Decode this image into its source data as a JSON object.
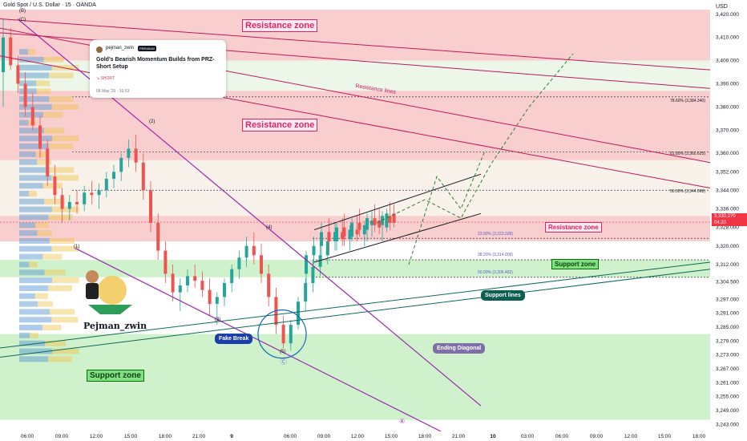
{
  "header": {
    "title": "Gold Spot / U.S. Dollar · 15 · OANDA",
    "currency": "USD"
  },
  "news": {
    "author": "pejman_zwin",
    "badge": "PREMIUM",
    "title": "Gold's Bearish Momentum Builds from PRZ-Short Setup",
    "direction": "↘ SHORT",
    "date": "08 May '25 · 16:53"
  },
  "author_watermark": "Pejman_zwin",
  "labels": {
    "resistance_zone_1": "Resistance zone",
    "resistance_zone_2": "Resistance zone",
    "resistance_zone_3": "Resistance zone",
    "resistance_lines": "Resistance lines",
    "support_zone_1": "Support zone",
    "support_zone_2": "Support zone",
    "support_lines": "Support lines",
    "fake_break": "Fake Break",
    "ending_diagonal": "Ending Diagonal"
  },
  "waves": {
    "B": "(B)",
    "C": "(C)",
    "w1": "(1)",
    "w2": "(2)",
    "w3": "(3)",
    "w4": "(4)",
    "w5": "(5)",
    "circC": "Ⓒ",
    "circ4": "④"
  },
  "fib": {
    "f786": "78.60% (3,384.340)",
    "f618": "61.80% (3,360.625)",
    "f500": "50.00% (3,344.068)",
    "f236": "23.60% (3,323.328)",
    "f382": "38.20% (3,314.009)",
    "f500b": "50.00% (3,306.482)"
  },
  "last_price": {
    "value": "3,330.270",
    "countdown": "04:20"
  },
  "colors": {
    "resistance_fill": "#f3a5a5",
    "support_fill": "#a8e6a0",
    "bull": "#26a69a",
    "bear": "#ef5350",
    "resistance_line": "#c2185b",
    "support_line": "#0b6b5b",
    "diagonal": "#9c27b0",
    "last_price": "#f23645"
  },
  "chart_data": {
    "type": "candlestick",
    "symbol": "XAUUSD",
    "timeframe": "15",
    "price_axis": {
      "min": 3240,
      "max": 3422,
      "ticks": [
        3420,
        3410,
        3400,
        3390,
        3380,
        3370,
        3360,
        3352,
        3344,
        3336,
        3328,
        3320,
        3312,
        3304.5,
        3297,
        3291,
        3285,
        3279,
        3273,
        3267,
        3261,
        3255,
        3249,
        3243
      ],
      "tick_labels": [
        "3,420.000",
        "3,410.000",
        "3,400.000",
        "3,390.000",
        "3,380.000",
        "3,370.000",
        "3,360.000",
        "3,352.000",
        "3,344.000",
        "3,336.000",
        "3,328.000",
        "3,320.000",
        "3,312.000",
        "3,304.500",
        "3,297.000",
        "3,291.000",
        "3,285.000",
        "3,279.000",
        "3,273.000",
        "3,267.000",
        "3,261.000",
        "3,255.000",
        "3,249.000",
        "3,243.000"
      ]
    },
    "time_axis": {
      "labels": [
        "06:00",
        "09:00",
        "12:00",
        "15:00",
        "18:00",
        "21:00",
        "9",
        "06:00",
        "09:00",
        "12:00",
        "15:00",
        "18:00",
        "21:00",
        "10",
        "03:00",
        "06:00",
        "09:00",
        "12:00",
        "15:00",
        "18:00"
      ],
      "bold": [
        "9",
        "10"
      ]
    },
    "zones": [
      {
        "name": "Resistance zone",
        "type": "resistance",
        "from": 3400,
        "to": 3422
      },
      {
        "name": "Resistance zone",
        "type": "resistance",
        "from": 3357,
        "to": 3387
      },
      {
        "name": "Resistance zone",
        "type": "resistance",
        "from": 3322,
        "to": 3333
      },
      {
        "name": "Support zone",
        "type": "support",
        "from": 3306.5,
        "to": 3314
      },
      {
        "name": "Support zone",
        "type": "support",
        "from": 3245,
        "to": 3282
      }
    ],
    "fibonacci": [
      {
        "level": "78.60%",
        "price": 3384.34
      },
      {
        "level": "61.80%",
        "price": 3360.625
      },
      {
        "level": "50.00%",
        "price": 3344.068
      },
      {
        "level": "23.60%",
        "price": 3323.328
      },
      {
        "level": "38.20%",
        "price": 3314.009
      },
      {
        "level": "50.00%",
        "price": 3306.482
      }
    ],
    "last_price": 3330.27,
    "candles_ohlc": [
      [
        3395,
        3418,
        3380,
        3410
      ],
      [
        3410,
        3414,
        3396,
        3398
      ],
      [
        3398,
        3402,
        3386,
        3390
      ],
      [
        3390,
        3395,
        3376,
        3380
      ],
      [
        3380,
        3386,
        3370,
        3372
      ],
      [
        3372,
        3376,
        3358,
        3362
      ],
      [
        3362,
        3366,
        3346,
        3350
      ],
      [
        3350,
        3355,
        3338,
        3342
      ],
      [
        3342,
        3345,
        3330,
        3336
      ],
      [
        3336,
        3342,
        3331,
        3339
      ],
      [
        3339,
        3344,
        3334,
        3338
      ],
      [
        3338,
        3346,
        3335,
        3343
      ],
      [
        3343,
        3348,
        3338,
        3342
      ],
      [
        3342,
        3347,
        3336,
        3344
      ],
      [
        3344,
        3352,
        3341,
        3349
      ],
      [
        3349,
        3355,
        3345,
        3352
      ],
      [
        3352,
        3360,
        3348,
        3358
      ],
      [
        3358,
        3366,
        3354,
        3362
      ],
      [
        3362,
        3368,
        3352,
        3356
      ],
      [
        3356,
        3360,
        3340,
        3344
      ],
      [
        3344,
        3348,
        3326,
        3330
      ],
      [
        3330,
        3334,
        3314,
        3318
      ],
      [
        3318,
        3322,
        3304,
        3308
      ],
      [
        3308,
        3312,
        3296,
        3300
      ],
      [
        3300,
        3306,
        3292,
        3303
      ],
      [
        3303,
        3310,
        3300,
        3307
      ],
      [
        3307,
        3312,
        3302,
        3305
      ],
      [
        3305,
        3309,
        3298,
        3301
      ],
      [
        3301,
        3306,
        3290,
        3295
      ],
      [
        3295,
        3300,
        3286,
        3298
      ],
      [
        3298,
        3306,
        3294,
        3304
      ],
      [
        3304,
        3312,
        3300,
        3310
      ],
      [
        3310,
        3318,
        3306,
        3315
      ],
      [
        3315,
        3324,
        3311,
        3320
      ],
      [
        3320,
        3326,
        3312,
        3316
      ],
      [
        3316,
        3321,
        3304,
        3308
      ],
      [
        3308,
        3312,
        3294,
        3298
      ],
      [
        3298,
        3302,
        3282,
        3286
      ],
      [
        3286,
        3290,
        3276,
        3278
      ],
      [
        3278,
        3288,
        3275,
        3286
      ],
      [
        3286,
        3298,
        3284,
        3296
      ],
      [
        3296,
        3306,
        3292,
        3304
      ],
      [
        3304,
        3314,
        3300,
        3311
      ],
      [
        3311,
        3320,
        3307,
        3316
      ],
      [
        3316,
        3326,
        3312,
        3322
      ],
      [
        3322,
        3330,
        3318,
        3326
      ],
      [
        3326,
        3332,
        3320,
        3323
      ],
      [
        3323,
        3329,
        3318,
        3327
      ],
      [
        3327,
        3333,
        3322,
        3325
      ],
      [
        3325,
        3331,
        3320,
        3329
      ],
      [
        3329,
        3335,
        3324,
        3331
      ],
      [
        3331,
        3336,
        3325,
        3328
      ],
      [
        3328,
        3336,
        3326,
        3334
      ],
      [
        3334,
        3338,
        3328,
        3330
      ]
    ],
    "projection": [
      {
        "x": "15:00",
        "y": 3330
      },
      {
        "x": "18:00",
        "y": 3340
      },
      {
        "x": "21:00",
        "y": 3332
      },
      {
        "x": "10",
        "y": 3355
      },
      {
        "x": "03:00",
        "y": 3380
      },
      {
        "x": "06:00",
        "y": 3403
      }
    ]
  }
}
